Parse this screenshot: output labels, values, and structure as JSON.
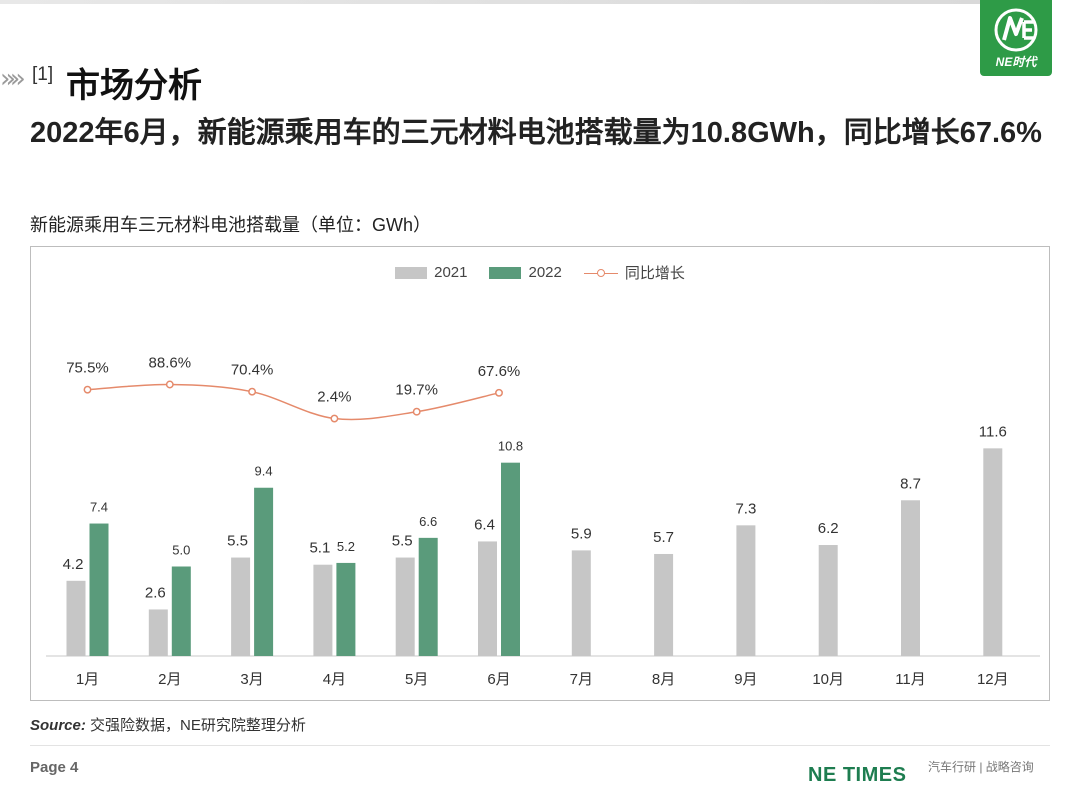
{
  "header": {
    "section_number": "[1]",
    "section_title": "市场分析",
    "headline": "2022年6月，新能源乘用车的三元材料电池搭载量为10.8GWh，同比增长67.6%",
    "logo_text": "NE时代",
    "accent_color": "#5a9b7b",
    "logo_color": "#2e9b47"
  },
  "chart_title": "新能源乘用车三元材料电池搭载量（单位：GWh）",
  "chart_data": {
    "type": "bar",
    "title": "新能源乘用车三元材料电池搭载量（单位：GWh）",
    "categories": [
      "1月",
      "2月",
      "3月",
      "4月",
      "5月",
      "6月",
      "7月",
      "8月",
      "9月",
      "10月",
      "11月",
      "12月"
    ],
    "series": [
      {
        "name": "2021",
        "type": "bar",
        "color": "#c6c6c6",
        "values": [
          4.2,
          2.6,
          5.5,
          5.1,
          5.5,
          6.4,
          5.9,
          5.7,
          7.3,
          6.2,
          8.7,
          11.6
        ],
        "labels": [
          "4.2",
          "2.6",
          "5.5",
          "5.1",
          "5.5",
          "6.4",
          "5.9",
          "5.7",
          "7.3",
          "6.2",
          "8.7",
          "11.6"
        ]
      },
      {
        "name": "2022",
        "type": "bar",
        "color": "#5a9b7b",
        "values": [
          7.4,
          5.0,
          9.4,
          5.2,
          6.6,
          10.8,
          null,
          null,
          null,
          null,
          null,
          null
        ],
        "labels": [
          "7.4",
          "5.0",
          "9.4",
          "5.2",
          "6.6",
          "10.8"
        ]
      },
      {
        "name": "同比增长",
        "type": "line",
        "color": "#e58a6b",
        "values": [
          75.5,
          88.6,
          70.4,
          2.4,
          19.7,
          67.6,
          null,
          null,
          null,
          null,
          null,
          null
        ],
        "labels": [
          "75.5%",
          "88.6%",
          "70.4%",
          "2.4%",
          "19.7%",
          "67.6%"
        ]
      }
    ],
    "xlabel": "",
    "ylabel": "",
    "legend": "top-center",
    "grid": false
  },
  "footer": {
    "source_label": "Source:",
    "source_text": " 交强险数据，NE研究院整理分析",
    "page": "Page 4",
    "brand": "NE TIMES",
    "tagline": "汽车行研 | 战略咨询"
  }
}
